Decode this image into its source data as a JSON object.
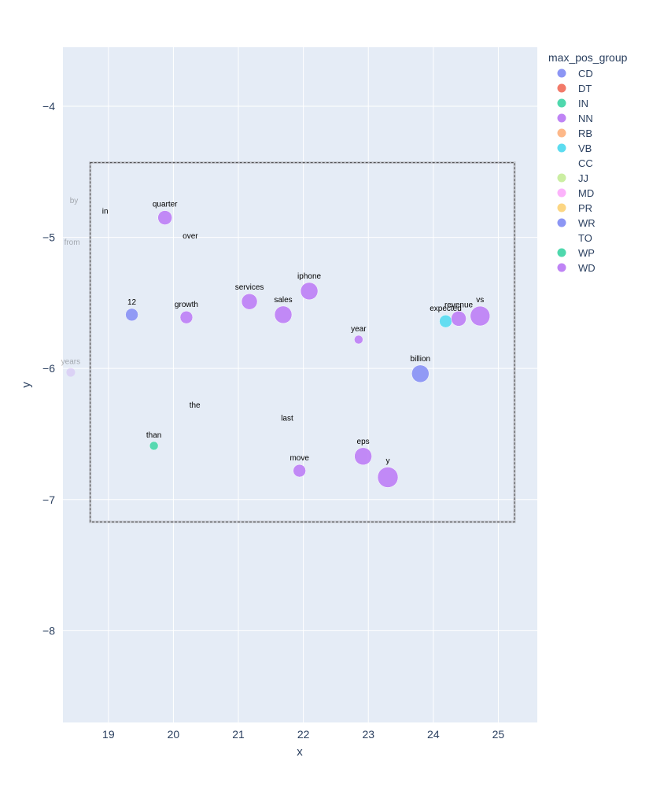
{
  "chart_data": {
    "type": "scatter",
    "xlabel": "x",
    "ylabel": "y",
    "xlim": [
      18.3,
      25.6
    ],
    "ylim": [
      -8.7,
      -3.55
    ],
    "xticks": [
      19,
      20,
      21,
      22,
      23,
      24,
      25
    ],
    "yticks": [
      -8,
      -7,
      -6,
      -5,
      -4
    ],
    "grid": true,
    "legend": {
      "title": "max_pos_group",
      "placement": "right",
      "entries": [
        {
          "name": "CD",
          "color": "#8c96f4"
        },
        {
          "name": "DT",
          "color": "#f27a69"
        },
        {
          "name": "IN",
          "color": "#4fd8ad"
        },
        {
          "name": "NN",
          "color": "#bf84f5"
        },
        {
          "name": "RB",
          "color": "#fdb889"
        },
        {
          "name": "VB",
          "color": "#5cdcf0"
        },
        {
          "name": "CC",
          "color": ""
        },
        {
          "name": "JJ",
          "color": "#cbeea2"
        },
        {
          "name": "MD",
          "color": "#fcb3fb"
        },
        {
          "name": "PR",
          "color": "#fcd683"
        },
        {
          "name": "WR",
          "color": "#8c96f4"
        },
        {
          "name": "TO",
          "color": ""
        },
        {
          "name": "WP",
          "color": "#4fd8ad"
        },
        {
          "name": "WD",
          "color": "#bf84f5"
        }
      ]
    },
    "selection_box": {
      "x": [
        18.72,
        25.25
      ],
      "y": [
        -7.17,
        -4.43
      ]
    },
    "points": [
      {
        "label": "by",
        "x": 18.47,
        "y": -4.72,
        "size": 0,
        "color": "",
        "faded": true
      },
      {
        "label": "in",
        "x": 18.95,
        "y": -4.8,
        "size": 0,
        "color": "",
        "faded": false
      },
      {
        "label": "from",
        "x": 18.44,
        "y": -5.04,
        "size": 0,
        "color": "",
        "faded": true
      },
      {
        "label": "quarter",
        "x": 19.87,
        "y": -4.85,
        "size": 9,
        "color": "#bf84f5",
        "faded": false
      },
      {
        "label": "over",
        "x": 20.26,
        "y": -4.99,
        "size": 0,
        "color": "",
        "faded": false
      },
      {
        "label": "12",
        "x": 19.36,
        "y": -5.59,
        "size": 8,
        "color": "#8c96f4",
        "faded": false
      },
      {
        "label": "growth",
        "x": 20.2,
        "y": -5.61,
        "size": 8,
        "color": "#bf84f5",
        "faded": false
      },
      {
        "label": "services",
        "x": 21.17,
        "y": -5.49,
        "size": 10,
        "color": "#bf84f5",
        "faded": false
      },
      {
        "label": "sales",
        "x": 21.69,
        "y": -5.59,
        "size": 11,
        "color": "#bf84f5",
        "faded": false
      },
      {
        "label": "iphone",
        "x": 22.09,
        "y": -5.41,
        "size": 11,
        "color": "#bf84f5",
        "faded": false
      },
      {
        "label": "year",
        "x": 22.85,
        "y": -5.78,
        "size": 5.5,
        "color": "#bf84f5",
        "faded": false
      },
      {
        "label": "expected",
        "x": 24.19,
        "y": -5.64,
        "size": 8,
        "color": "#5cdcf0",
        "faded": false
      },
      {
        "label": "revenue",
        "x": 24.39,
        "y": -5.62,
        "size": 9.5,
        "color": "#bf84f5",
        "faded": false
      },
      {
        "label": "vs",
        "x": 24.72,
        "y": -5.6,
        "size": 12.5,
        "color": "#bf84f5",
        "faded": false
      },
      {
        "label": "billion",
        "x": 23.8,
        "y": -6.04,
        "size": 11,
        "color": "#8c96f4",
        "faded": false
      },
      {
        "label": "years",
        "x": 18.42,
        "y": -6.03,
        "size": 5.5,
        "color": "#bf84f5",
        "faded": true
      },
      {
        "label": "the",
        "x": 20.33,
        "y": -6.28,
        "size": 0,
        "color": "",
        "faded": false
      },
      {
        "label": "last",
        "x": 21.75,
        "y": -6.38,
        "size": 0,
        "color": "",
        "faded": false
      },
      {
        "label": "than",
        "x": 19.7,
        "y": -6.59,
        "size": 5.5,
        "color": "#4fd8ad",
        "faded": false
      },
      {
        "label": "move",
        "x": 21.94,
        "y": -6.78,
        "size": 8,
        "color": "#bf84f5",
        "faded": false
      },
      {
        "label": "eps",
        "x": 22.92,
        "y": -6.67,
        "size": 11,
        "color": "#bf84f5",
        "faded": false
      },
      {
        "label": "y",
        "x": 23.3,
        "y": -6.83,
        "size": 13,
        "color": "#bf84f5",
        "faded": false
      }
    ]
  }
}
